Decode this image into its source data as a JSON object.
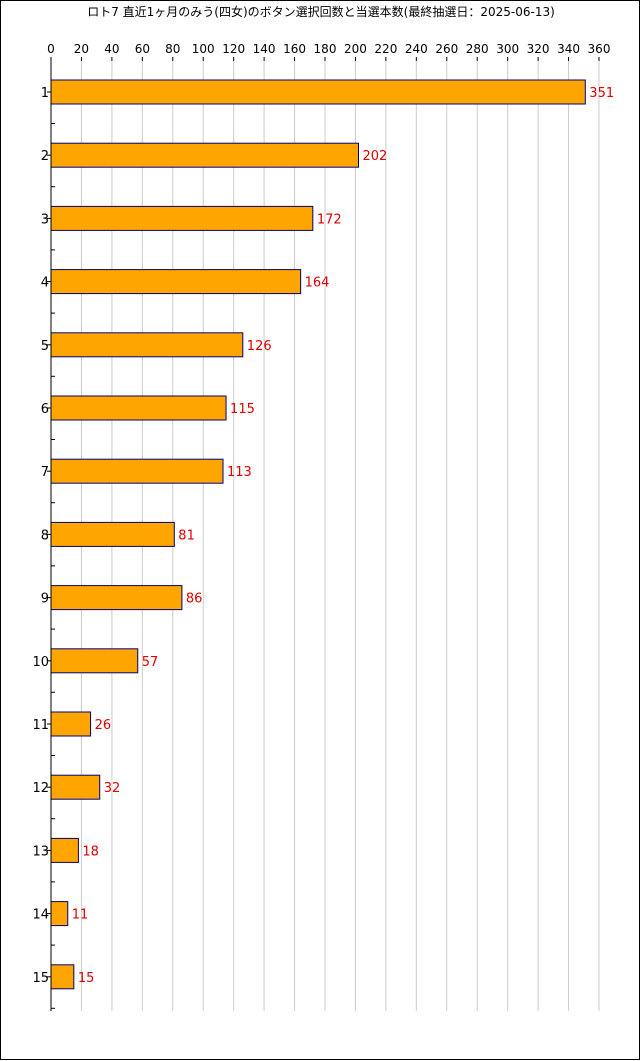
{
  "chart_data": {
    "type": "bar",
    "orientation": "horizontal",
    "title": "ロト7 直近1ヶ月のみう(四女)のボタン選択回数と当選本数(最終抽選日：2025-06-13)",
    "categories": [
      "1",
      "2",
      "3",
      "4",
      "5",
      "6",
      "7",
      "8",
      "9",
      "10",
      "11",
      "12",
      "13",
      "14",
      "15"
    ],
    "values": [
      351,
      202,
      172,
      164,
      126,
      115,
      113,
      81,
      86,
      57,
      26,
      32,
      18,
      11,
      15
    ],
    "xlim": [
      0,
      360
    ],
    "xticks": [
      0,
      20,
      40,
      60,
      80,
      100,
      120,
      140,
      160,
      180,
      200,
      220,
      240,
      260,
      280,
      300,
      320,
      340,
      360
    ],
    "xaxis_position": "top",
    "grid": "vertical",
    "bar_color": "#ffa500",
    "bar_edge_color": "#000080",
    "label_color": "#e00000",
    "grid_color": "#cccccc"
  }
}
